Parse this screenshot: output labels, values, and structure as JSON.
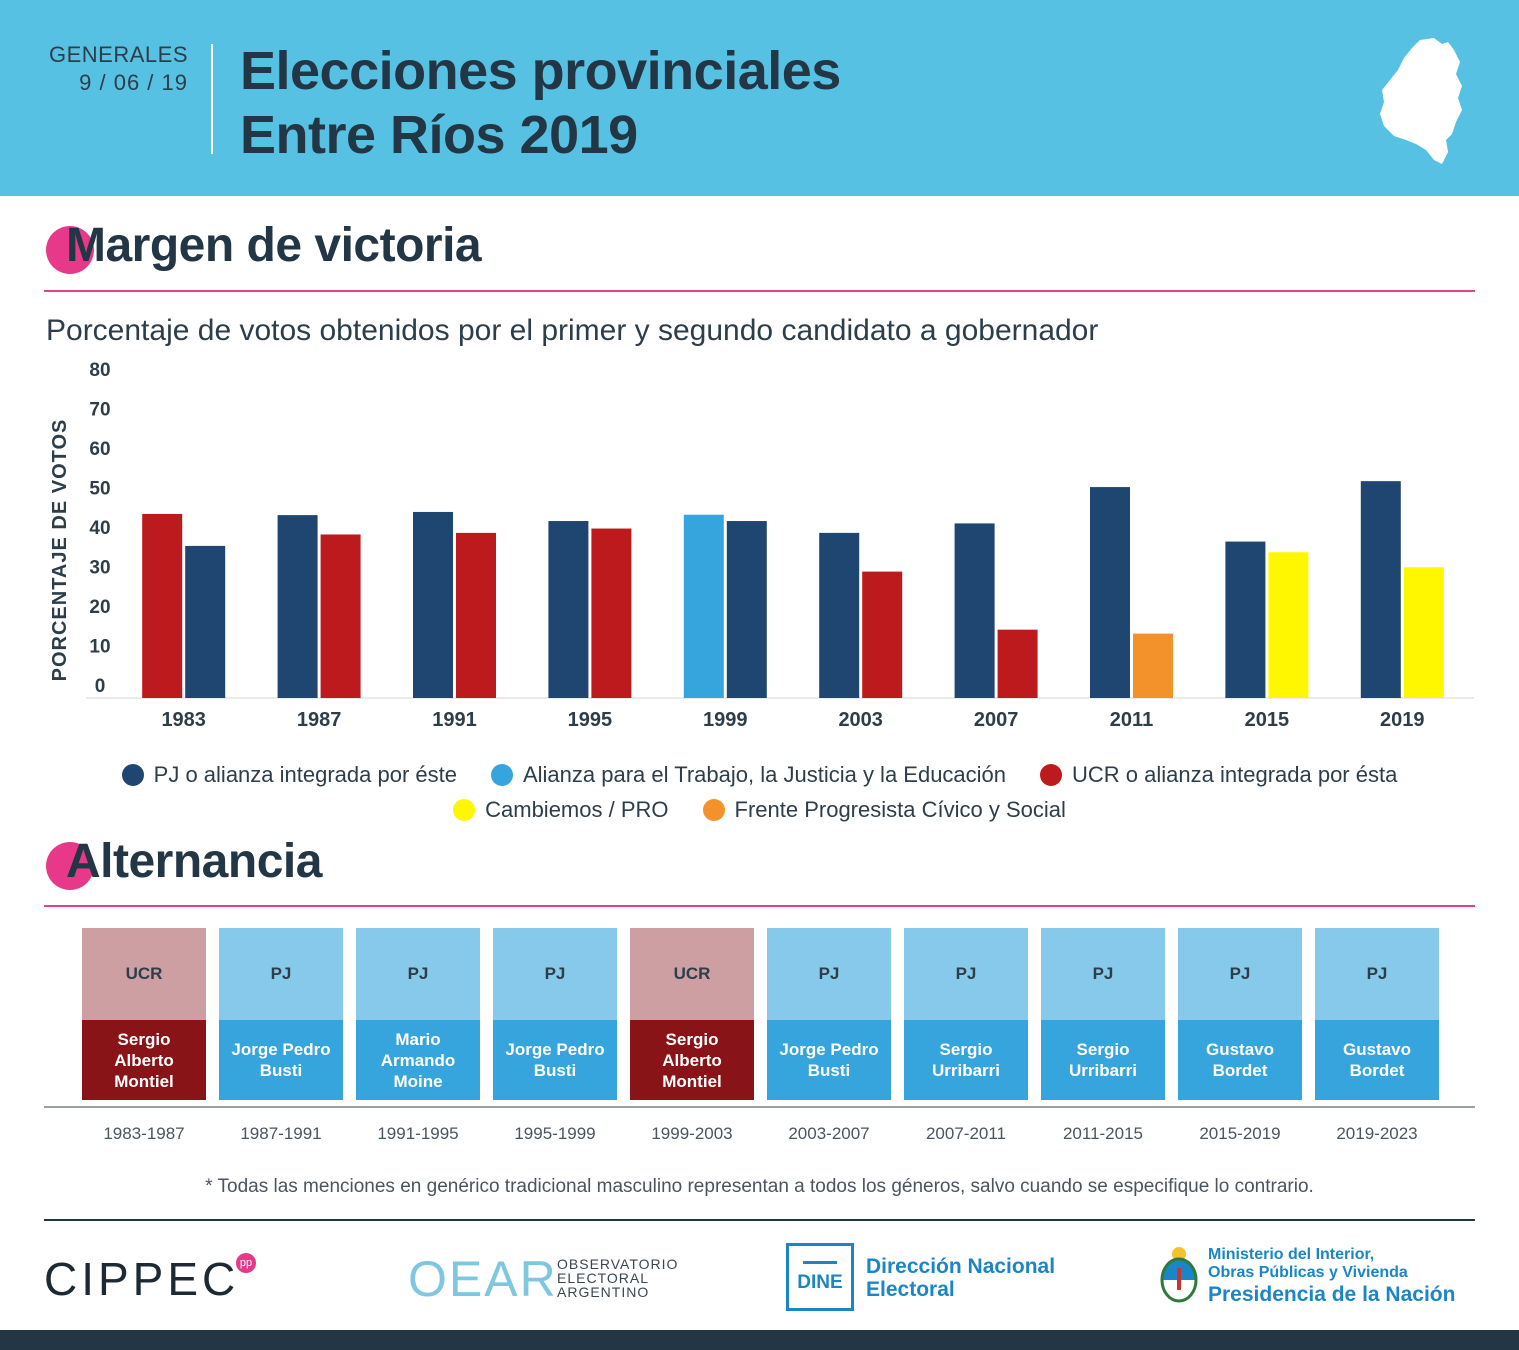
{
  "header": {
    "election_type": "GENERALES",
    "election_date": "9 / 06 / 19",
    "title_line1": "Elecciones provinciales",
    "title_line2": "Entre Ríos 2019",
    "bg_color": "#57c1e3"
  },
  "section_margin": {
    "title": "Margen de victoria",
    "subtitle": "Porcentaje de votos obtenidos por el primer y segundo candidato a gobernador"
  },
  "chart_data": {
    "type": "bar",
    "title": "Porcentaje de votos obtenidos por el primer y segundo candidato a gobernador",
    "xlabel": "",
    "ylabel": "PORCENTAJE DE VOTOS",
    "ylim": [
      0,
      80
    ],
    "yticks": [
      0,
      10,
      20,
      30,
      40,
      50,
      60,
      70,
      80
    ],
    "categories": [
      "1983",
      "1987",
      "1991",
      "1995",
      "1999",
      "2003",
      "2007",
      "2011",
      "2015",
      "2019"
    ],
    "series": [
      {
        "name": "Primer candidato",
        "values": [
          46.6,
          46.3,
          47.1,
          44.8,
          46.4,
          41.8,
          44.2,
          53.4,
          39.6,
          54.9
        ],
        "parties": [
          "UCR",
          "PJ",
          "PJ",
          "PJ",
          "Alianza",
          "PJ",
          "PJ",
          "PJ",
          "PJ",
          "PJ"
        ]
      },
      {
        "name": "Segundo candidato",
        "values": [
          38.5,
          41.4,
          41.8,
          42.9,
          44.8,
          32.0,
          17.3,
          16.3,
          36.9,
          33.1
        ],
        "parties": [
          "PJ",
          "UCR",
          "UCR",
          "UCR",
          "PJ",
          "UCR",
          "UCR",
          "FPCyS",
          "Cambiemos",
          "Cambiemos"
        ]
      }
    ],
    "party_colors": {
      "PJ": "#1f4670",
      "Alianza": "#36a5dd",
      "UCR": "#bd1a1e",
      "Cambiemos": "#fff700",
      "FPCyS": "#f3912b"
    },
    "legend": [
      {
        "key": "PJ",
        "label": "PJ o alianza integrada por éste"
      },
      {
        "key": "Alianza",
        "label": "Alianza para el Trabajo, la Justicia y la Educación"
      },
      {
        "key": "UCR",
        "label": "UCR o alianza integrada por ésta"
      },
      {
        "key": "Cambiemos",
        "label": "Cambiemos / PRO"
      },
      {
        "key": "FPCyS",
        "label": "Frente Progresista Cívico y Social"
      }
    ]
  },
  "section_alternancia": {
    "title": "Alternancia",
    "periods": [
      {
        "party": "UCR",
        "governor": "Sergio Alberto Montiel",
        "years": "1983-1987"
      },
      {
        "party": "PJ",
        "governor": "Jorge Pedro Busti",
        "years": "1987-1991"
      },
      {
        "party": "PJ",
        "governor": "Mario Armando Moine",
        "years": "1991-1995"
      },
      {
        "party": "PJ",
        "governor": "Jorge Pedro Busti",
        "years": "1995-1999"
      },
      {
        "party": "UCR",
        "governor": "Sergio Alberto Montiel",
        "years": "1999-2003"
      },
      {
        "party": "PJ",
        "governor": "Jorge Pedro Busti",
        "years": "2003-2007"
      },
      {
        "party": "PJ",
        "governor": "Sergio Urribarri",
        "years": "2007-2011"
      },
      {
        "party": "PJ",
        "governor": "Sergio Urribarri",
        "years": "2011-2015"
      },
      {
        "party": "PJ",
        "governor": "Gustavo Bordet",
        "years": "2015-2019"
      },
      {
        "party": "PJ",
        "governor": "Gustavo Bordet",
        "years": "2019-2023"
      }
    ]
  },
  "footnote": "* Todas las menciones en genérico tradicional masculino representan a todos los géneros, salvo cuando se especifique lo contrario.",
  "footer": {
    "cippec": "CIPPEC",
    "cippec_badge": "pp",
    "oear": "OEAR",
    "oear_sub_1": "OBSERVATORIO",
    "oear_sub_2": "ELECTORAL",
    "oear_sub_3": "ARGENTINO",
    "dine_abbr": "DINE",
    "dine_line1": "Dirección Nacional",
    "dine_line2": "Electoral",
    "ministry_line1": "Ministerio del Interior,",
    "ministry_line2": "Obras Públicas y Vivienda",
    "ministry_line3": "Presidencia de la Nación"
  }
}
